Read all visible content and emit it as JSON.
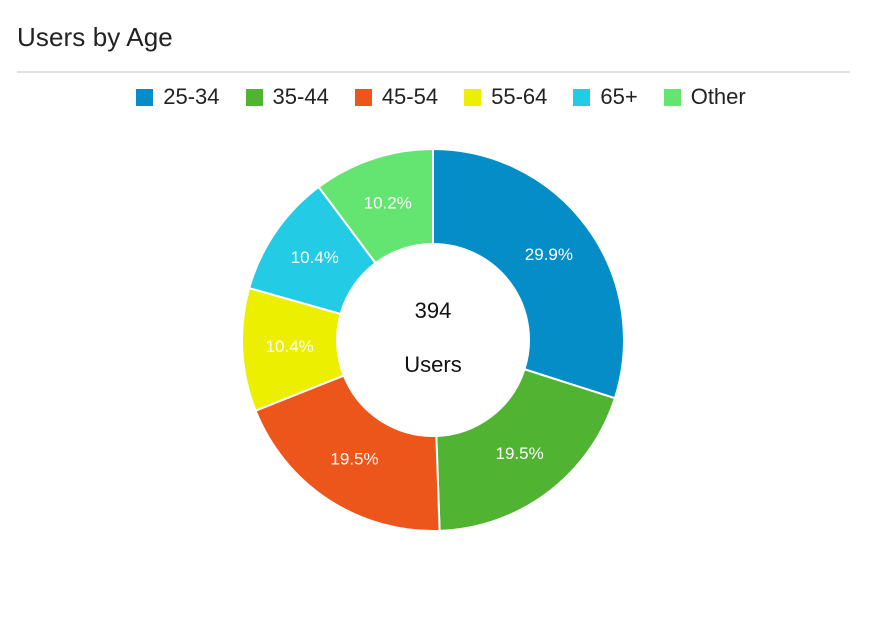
{
  "header": {
    "title": "Users by Age"
  },
  "chart_data": {
    "type": "pie",
    "style": "donut",
    "categories": [
      "25-34",
      "35-44",
      "45-54",
      "55-64",
      "65+",
      "Other"
    ],
    "values": [
      29.9,
      19.5,
      19.5,
      10.4,
      10.4,
      10.2
    ],
    "labels": [
      "29.9%",
      "19.5%",
      "19.5%",
      "10.4%",
      "10.4%",
      "10.2%"
    ],
    "colors": [
      "#058dc7",
      "#50b432",
      "#ed561b",
      "#edef00",
      "#24cbe5",
      "#64e572"
    ],
    "center_value": "394",
    "center_label": "Users",
    "legend_position": "top"
  }
}
